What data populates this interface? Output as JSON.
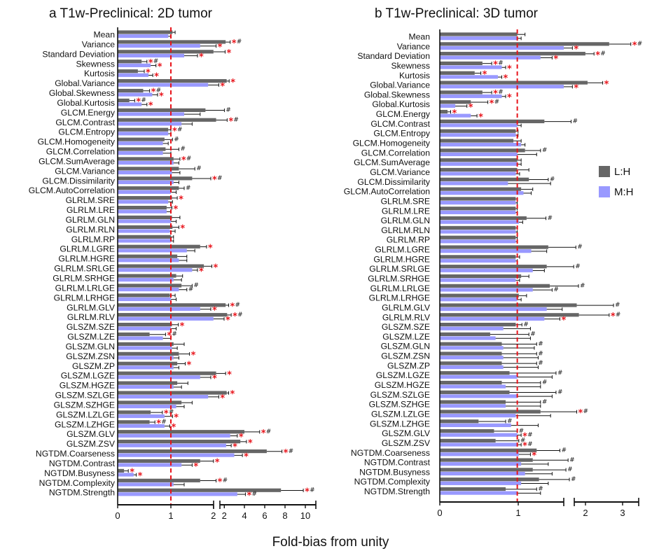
{
  "x_axis_title": "Fold-bias from unity",
  "colors": {
    "lh": "#666666",
    "mh": "#9999ff",
    "unity_line": "#e8141b",
    "star": "#e8141b",
    "hash": "#111111"
  },
  "legend": [
    {
      "key": "lh",
      "label": "L:H"
    },
    {
      "key": "mh",
      "label": "M:H"
    }
  ],
  "chart_data": [
    {
      "type": "bar",
      "orientation": "horizontal",
      "title": "a  T1w-Preclinical: 2D tumor",
      "xlabel": "Fold-bias from unity",
      "xscale": "broken-linear (0–2 expanded, 2–10 compressed)",
      "xticks": [
        "0",
        "1",
        "2",
        "2",
        "4",
        "6",
        "8",
        "10"
      ],
      "unity_line": 1,
      "categories": [
        "Mean",
        "Variance",
        "Standard Deviation",
        "Skewness",
        "Kurtosis",
        "Global.Variance",
        "Global.Skewness",
        "Global.Kurtosis",
        "GLCM.Energy",
        "GLCM.Contrast",
        "GLCM.Entropy",
        "GLCM.Homogeneity",
        "GLCM.Correlation",
        "GLCM.SumAverage",
        "GLCM.Variance",
        "GLCM.Dissimilarity",
        "GLCM.AutoCorrelation",
        "GLRLM.SRE",
        "GLRLM.LRE",
        "GLRLM.GLN",
        "GLRLM.RLN",
        "GLRLM.RP",
        "GLRLM.LGRE",
        "GLRLM.HGRE",
        "GLRLM.SRLGE",
        "GLRLM.SRHGE",
        "GLRLM.LRLGE",
        "GLRLM.LRHGE",
        "GLRLM.GLV",
        "GLRLM.RLV",
        "GLSZM.SZE",
        "GLSZM.LZE",
        "GLSZM.GLN",
        "GLSZM.ZSN",
        "GLSZM.ZP",
        "GLSZM.LGZE",
        "GLSZM.HGZE",
        "GLSZM.SZLGE",
        "GLSZM.SZHGE",
        "GLSZM.LZLGE",
        "GLSZM.LZHGE",
        "GLSZM.GLV",
        "GLSZM.ZSV",
        "NGTDM.Coarseness",
        "NGTDM.Contrast",
        "NGTDM.Busyness",
        "NGTDM.Complexity",
        "NGTDM.Strength"
      ],
      "series": [
        {
          "name": "L:H",
          "color": "#666666",
          "values": [
            1.03,
            2.15,
            1.8,
            0.45,
            0.38,
            2.25,
            0.48,
            0.22,
            1.65,
            1.85,
            0.95,
            0.88,
            0.9,
            1.05,
            1.15,
            1.4,
            1.15,
            1.02,
            0.92,
            1.02,
            1.03,
            1.0,
            1.55,
            1.12,
            1.62,
            1.1,
            1.2,
            0.98,
            2.15,
            2.3,
            1.02,
            0.6,
            1.05,
            1.15,
            1.12,
            1.85,
            1.12,
            2.25,
            1.2,
            0.62,
            0.6,
            4.0,
            3.6,
            6.2,
            1.55,
            0.12,
            1.55,
            7.6
          ],
          "err": [
            0.05,
            0.45,
            0.3,
            0.1,
            0.12,
            0.25,
            0.12,
            0.1,
            0.38,
            0.45,
            0.05,
            0.15,
            0.25,
            0.12,
            0.3,
            0.35,
            0.1,
            0.1,
            0.1,
            0.15,
            0.12,
            0.05,
            0.12,
            0.18,
            0.15,
            0.12,
            0.2,
            0.1,
            0.3,
            0.4,
            0.12,
            0.3,
            0.2,
            0.2,
            0.15,
            0.3,
            0.2,
            0.2,
            0.2,
            0.22,
            0.1,
            1.5,
            0.6,
            1.5,
            0.25,
            0.08,
            0.3,
            2.2
          ],
          "star": [
            false,
            true,
            true,
            true,
            true,
            true,
            true,
            true,
            false,
            true,
            true,
            false,
            false,
            true,
            false,
            true,
            false,
            true,
            true,
            false,
            true,
            false,
            true,
            false,
            true,
            false,
            false,
            false,
            true,
            true,
            true,
            true,
            false,
            true,
            true,
            true,
            false,
            true,
            false,
            true,
            true,
            true,
            true,
            true,
            true,
            true,
            true,
            true
          ],
          "hash": [
            false,
            true,
            false,
            true,
            false,
            false,
            true,
            true,
            true,
            true,
            true,
            true,
            true,
            true,
            true,
            true,
            true,
            false,
            false,
            false,
            false,
            false,
            false,
            false,
            false,
            false,
            true,
            false,
            true,
            true,
            false,
            true,
            false,
            false,
            false,
            false,
            false,
            false,
            false,
            true,
            true,
            true,
            false,
            true,
            false,
            false,
            true,
            true
          ]
        },
        {
          "name": "M:H",
          "color": "#9999ff",
          "values": [
            0.95,
            1.55,
            1.25,
            0.62,
            0.58,
            1.7,
            0.65,
            0.45,
            1.25,
            1.2,
            0.95,
            0.85,
            0.85,
            1.05,
            1.02,
            1.05,
            1.0,
            0.95,
            0.92,
            1.0,
            0.98,
            1.0,
            1.3,
            1.15,
            1.4,
            1.05,
            1.15,
            1.0,
            1.55,
            1.8,
            1.0,
            0.85,
            1.02,
            1.05,
            1.05,
            1.55,
            1.05,
            1.7,
            1.1,
            0.88,
            0.88,
            2.6,
            2.2,
            3.0,
            1.2,
            0.3,
            1.05,
            3.3
          ],
          "err": [
            0.05,
            0.3,
            0.25,
            0.1,
            0.08,
            0.2,
            0.1,
            0.1,
            0.3,
            0.2,
            0.05,
            0.1,
            0.15,
            0.1,
            0.15,
            0.1,
            0.1,
            0.08,
            0.08,
            0.1,
            0.1,
            0.05,
            0.15,
            0.15,
            0.1,
            0.15,
            0.15,
            0.1,
            0.2,
            0.2,
            0.1,
            0.15,
            0.1,
            0.1,
            0.1,
            0.2,
            0.15,
            0.2,
            0.15,
            0.15,
            0.1,
            0.7,
            0.5,
            0.8,
            0.2,
            0.05,
            0.2,
            0.8
          ],
          "star": [
            false,
            true,
            true,
            true,
            true,
            true,
            true,
            true,
            false,
            false,
            false,
            false,
            false,
            false,
            false,
            false,
            false,
            false,
            false,
            false,
            false,
            false,
            false,
            false,
            true,
            false,
            false,
            false,
            true,
            true,
            false,
            false,
            false,
            false,
            false,
            true,
            false,
            true,
            false,
            true,
            true,
            true,
            true,
            true,
            true,
            true,
            false,
            true
          ],
          "hash": [
            false,
            false,
            false,
            false,
            false,
            false,
            false,
            false,
            false,
            false,
            false,
            false,
            false,
            false,
            false,
            false,
            false,
            false,
            false,
            false,
            false,
            false,
            false,
            false,
            false,
            false,
            true,
            false,
            false,
            false,
            false,
            false,
            false,
            false,
            false,
            false,
            false,
            false,
            false,
            false,
            false,
            false,
            false,
            false,
            false,
            false,
            false,
            true
          ]
        }
      ]
    },
    {
      "type": "bar",
      "orientation": "horizontal",
      "title": "b  T1w-Preclinical: 3D tumor",
      "xlabel": "Fold-bias from unity",
      "xscale": "broken-linear (0–1.6 expanded, 1.6–3.3 compressed)",
      "xticks": [
        "0",
        "1",
        "2",
        "3"
      ],
      "unity_line": 1,
      "categories": [
        "Mean",
        "Variance",
        "Standard Deviation",
        "Skewness",
        "Kurtosis",
        "Global.Variance",
        "Global.Skewness",
        "Global.Kurtosis",
        "GLCM.Energy",
        "GLCM.Contrast",
        "GLCM.Entropy",
        "GLCM.Homogeneity",
        "GLCM.Correlation",
        "GLCM.SumAverage",
        "GLCM.Variance",
        "GLCM.Dissimilarity",
        "GLCM.AutoCorrelation",
        "GLRLM.SRE",
        "GLRLM.LRE",
        "GLRLM.GLN",
        "GLRLM.RLN",
        "GLRLM.RP",
        "GLRLM.LGRE",
        "GLRLM.HGRE",
        "GLRLM.SRLGE",
        "GLRLM.SRHGE",
        "GLRLM.LRLGE",
        "GLRLM.LRHGE",
        "GLRLM.GLV",
        "GLRLM.RLV",
        "GLSZM.SZE",
        "GLSZM.LZE",
        "GLSZM.GLN",
        "GLSZM.ZSN",
        "GLSZM.ZP",
        "GLSZM.LGZE",
        "GLSZM.HGZE",
        "GLSZM.SZLGE",
        "GLSZM.SZHGE",
        "GLSZM.LZLGE",
        "GLSZM.LZHGE",
        "GLSZM.GLV",
        "GLSZM.ZSV",
        "NGTDM.Coarseness",
        "NGTDM.Contrast",
        "NGTDM.Busyness",
        "NGTDM.Complexity",
        "NGTDM.Strength"
      ],
      "series": [
        {
          "name": "L:H",
          "color": "#666666",
          "values": [
            1.0,
            2.65,
            2.1,
            0.55,
            0.45,
            2.15,
            0.55,
            0.4,
            0.1,
            1.35,
            0.98,
            0.95,
            1.1,
            1.0,
            1.0,
            1.15,
            1.05,
            0.98,
            0.98,
            1.12,
            0.98,
            0.98,
            1.4,
            0.98,
            1.38,
            1.05,
            1.42,
            1.02,
            1.9,
            1.95,
            0.98,
            0.65,
            0.8,
            0.8,
            0.8,
            0.9,
            0.8,
            0.9,
            0.85,
            1.3,
            0.5,
            0.7,
            0.72,
            1.25,
            1.2,
            1.2,
            1.28,
            0.85
          ],
          "err": [
            0.1,
            0.5,
            0.2,
            0.12,
            0.08,
            0.35,
            0.12,
            0.22,
            0.04,
            0.42,
            0.03,
            0.1,
            0.2,
            0.05,
            0.15,
            0.25,
            0.15,
            0.02,
            0.02,
            0.25,
            0.02,
            0.02,
            0.48,
            0.05,
            0.45,
            0.1,
            0.52,
            0.1,
            0.85,
            0.7,
            0.08,
            0.5,
            0.45,
            0.45,
            0.45,
            0.6,
            0.5,
            0.6,
            0.45,
            0.6,
            0.35,
            0.3,
            0.3,
            0.3,
            0.5,
            0.45,
            0.45,
            0.4
          ],
          "star": [
            false,
            true,
            true,
            true,
            true,
            true,
            true,
            true,
            true,
            false,
            false,
            false,
            false,
            false,
            false,
            false,
            false,
            false,
            false,
            false,
            false,
            false,
            false,
            false,
            false,
            false,
            false,
            false,
            false,
            true,
            false,
            false,
            false,
            false,
            false,
            false,
            false,
            false,
            false,
            true,
            false,
            false,
            false,
            false,
            false,
            false,
            false,
            false
          ],
          "hash": [
            false,
            true,
            true,
            true,
            false,
            false,
            true,
            true,
            false,
            true,
            false,
            false,
            true,
            false,
            false,
            true,
            false,
            false,
            false,
            true,
            false,
            false,
            true,
            false,
            true,
            false,
            true,
            false,
            true,
            true,
            true,
            true,
            true,
            true,
            true,
            true,
            true,
            true,
            true,
            true,
            true,
            true,
            true,
            true,
            true,
            true,
            true,
            true
          ]
        },
        {
          "name": "M:H",
          "color": "#9999ff",
          "values": [
            1.0,
            1.6,
            1.3,
            0.8,
            0.75,
            1.6,
            0.8,
            0.2,
            0.4,
            1.0,
            0.98,
            1.05,
            1.0,
            1.0,
            0.98,
            0.88,
            1.08,
            0.98,
            0.98,
            1.02,
            0.98,
            0.98,
            1.18,
            0.98,
            1.2,
            0.98,
            1.2,
            1.0,
            1.38,
            1.35,
            0.82,
            0.72,
            0.82,
            0.82,
            0.82,
            1.0,
            0.85,
            1.0,
            0.85,
            0.98,
            0.92,
            1.0,
            1.0,
            1.02,
            1.05,
            1.1,
            1.05,
            1.0
          ],
          "err": [
            0.05,
            0.2,
            0.15,
            0.05,
            0.05,
            0.2,
            0.05,
            0.15,
            0.08,
            0.05,
            0.03,
            0.05,
            0.25,
            0.05,
            0.05,
            0.55,
            0.1,
            0.02,
            0.02,
            0.05,
            0.02,
            0.02,
            0.2,
            0.02,
            0.15,
            0.05,
            0.25,
            0.05,
            0.2,
            0.2,
            0.35,
            0.45,
            0.4,
            0.45,
            0.45,
            0.45,
            0.45,
            0.45,
            0.45,
            0.45,
            0.35,
            0.05,
            0.05,
            0.15,
            0.35,
            0.35,
            0.35,
            0.3
          ],
          "star": [
            false,
            true,
            true,
            true,
            true,
            true,
            true,
            true,
            true,
            false,
            false,
            false,
            false,
            false,
            false,
            false,
            false,
            false,
            false,
            false,
            false,
            false,
            false,
            false,
            false,
            false,
            false,
            false,
            false,
            true,
            false,
            false,
            false,
            false,
            false,
            false,
            false,
            false,
            false,
            false,
            false,
            true,
            true,
            true,
            false,
            false,
            false,
            false
          ],
          "hash": [
            false,
            false,
            false,
            false,
            false,
            false,
            false,
            false,
            false,
            false,
            false,
            false,
            false,
            false,
            false,
            false,
            false,
            false,
            false,
            false,
            false,
            false,
            false,
            false,
            false,
            false,
            true,
            false,
            false,
            false,
            false,
            false,
            false,
            false,
            false,
            false,
            false,
            false,
            false,
            false,
            false,
            true,
            true,
            false,
            false,
            false,
            false,
            false
          ]
        }
      ]
    }
  ]
}
